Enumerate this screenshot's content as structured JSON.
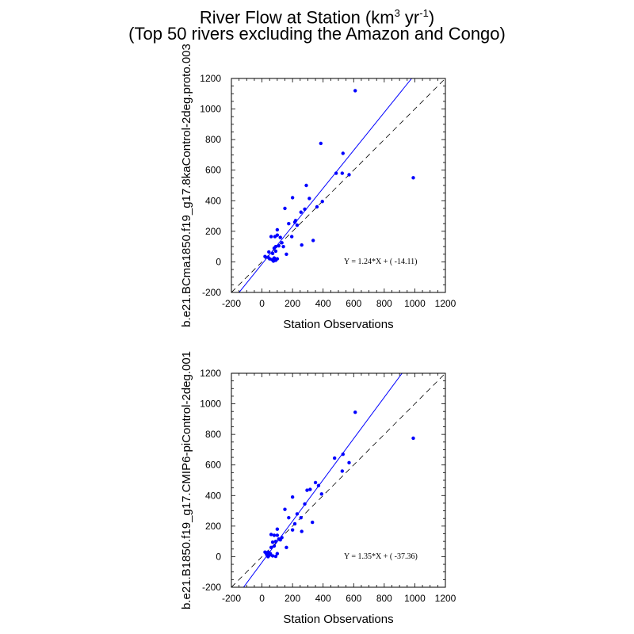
{
  "title": {
    "line1_prefix": "River Flow at Station (km",
    "line1_sup1": "3",
    "line1_mid": " yr",
    "line1_sup2": "-1",
    "line1_suffix": ")",
    "line2": "(Top 50 rivers excluding the Amazon and Congo)"
  },
  "chart_data": [
    {
      "type": "scatter",
      "xlabel": "Station Observations",
      "ylabel": "b.e21.BCma1850.f19_g17.8kaControl-2deg.proto.003",
      "xlim": [
        -200,
        1200
      ],
      "ylim": [
        -200,
        1200
      ],
      "xticks": [
        -200,
        0,
        200,
        400,
        600,
        800,
        1000,
        1200
      ],
      "yticks": [
        -200,
        0,
        200,
        400,
        600,
        800,
        1000,
        1200
      ],
      "marker_color": "#0000ff",
      "fit_line_color": "#0000ff",
      "fit": {
        "slope": 1.24,
        "intercept": -14.11
      },
      "fit_label": "Y =  1.24*X + (  -14.11)",
      "reference_line": "1:1 dashed",
      "points": [
        [
          610,
          1120
        ],
        [
          385,
          775
        ],
        [
          530,
          710
        ],
        [
          485,
          580
        ],
        [
          525,
          580
        ],
        [
          570,
          570
        ],
        [
          990,
          550
        ],
        [
          290,
          500
        ],
        [
          200,
          420
        ],
        [
          310,
          415
        ],
        [
          395,
          395
        ],
        [
          360,
          360
        ],
        [
          150,
          350
        ],
        [
          280,
          345
        ],
        [
          255,
          325
        ],
        [
          220,
          270
        ],
        [
          215,
          260
        ],
        [
          230,
          240
        ],
        [
          175,
          250
        ],
        [
          100,
          210
        ],
        [
          100,
          175
        ],
        [
          85,
          165
        ],
        [
          60,
          165
        ],
        [
          195,
          165
        ],
        [
          120,
          160
        ],
        [
          335,
          140
        ],
        [
          130,
          125
        ],
        [
          260,
          110
        ],
        [
          110,
          105
        ],
        [
          90,
          100
        ],
        [
          140,
          100
        ],
        [
          80,
          90
        ],
        [
          90,
          70
        ],
        [
          45,
          65
        ],
        [
          70,
          55
        ],
        [
          160,
          50
        ],
        [
          20,
          35
        ],
        [
          40,
          30
        ],
        [
          80,
          25
        ],
        [
          50,
          20
        ],
        [
          65,
          15
        ],
        [
          90,
          10
        ],
        [
          100,
          20
        ],
        [
          75,
          5
        ]
      ]
    },
    {
      "type": "scatter",
      "xlabel": "Station Observations",
      "ylabel": "b.e21.B1850.f19_g17.CMIP6-piControl-2deg.001",
      "xlim": [
        -200,
        1200
      ],
      "ylim": [
        -200,
        1200
      ],
      "xticks": [
        -200,
        0,
        200,
        400,
        600,
        800,
        1000,
        1200
      ],
      "yticks": [
        -200,
        0,
        200,
        400,
        600,
        800,
        1000,
        1200
      ],
      "marker_color": "#0000ff",
      "fit_line_color": "#0000ff",
      "fit": {
        "slope": 1.35,
        "intercept": -37.36
      },
      "fit_label": "Y =  1.35*X + (  -37.36)",
      "reference_line": "1:1 dashed",
      "points": [
        [
          610,
          945
        ],
        [
          990,
          775
        ],
        [
          530,
          670
        ],
        [
          475,
          645
        ],
        [
          570,
          615
        ],
        [
          525,
          560
        ],
        [
          350,
          485
        ],
        [
          370,
          465
        ],
        [
          295,
          435
        ],
        [
          315,
          440
        ],
        [
          390,
          410
        ],
        [
          200,
          390
        ],
        [
          150,
          310
        ],
        [
          280,
          345
        ],
        [
          330,
          225
        ],
        [
          215,
          215
        ],
        [
          230,
          280
        ],
        [
          255,
          255
        ],
        [
          175,
          255
        ],
        [
          200,
          175
        ],
        [
          260,
          165
        ],
        [
          100,
          180
        ],
        [
          60,
          145
        ],
        [
          80,
          140
        ],
        [
          100,
          140
        ],
        [
          130,
          125
        ],
        [
          110,
          115
        ],
        [
          120,
          110
        ],
        [
          90,
          100
        ],
        [
          70,
          95
        ],
        [
          80,
          70
        ],
        [
          60,
          60
        ],
        [
          160,
          60
        ],
        [
          40,
          30
        ],
        [
          20,
          30
        ],
        [
          55,
          20
        ],
        [
          50,
          10
        ],
        [
          100,
          20
        ],
        [
          70,
          5
        ],
        [
          90,
          2
        ],
        [
          40,
          0
        ],
        [
          30,
          15
        ]
      ]
    }
  ]
}
